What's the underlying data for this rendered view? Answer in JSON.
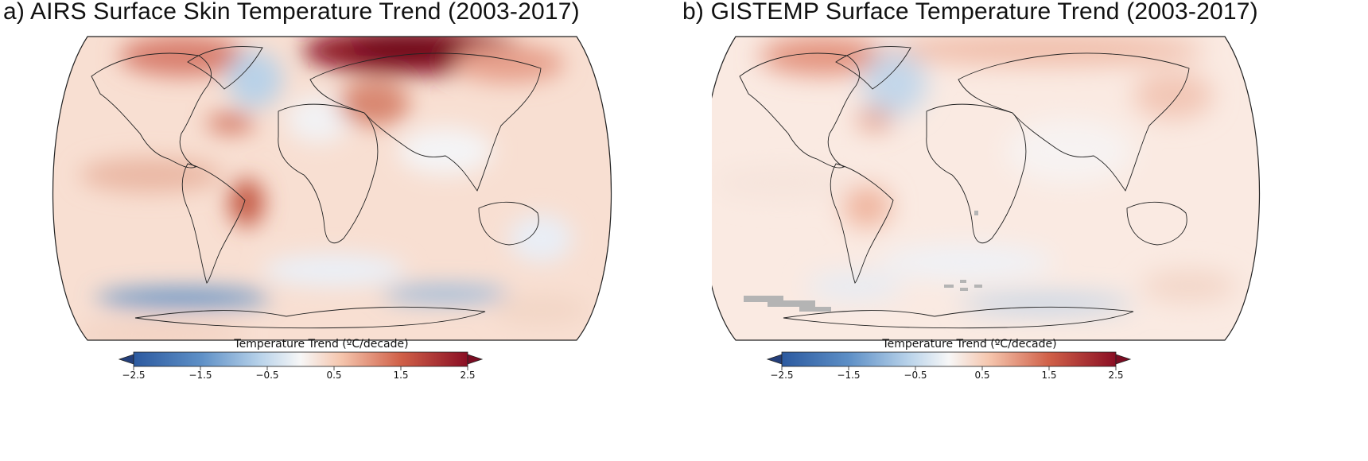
{
  "figure": {
    "colorbar": {
      "label": "Temperature Trend (ºC/decade)",
      "ticks": [
        "−2.5",
        "−1.5",
        "−0.5",
        "0.5",
        "1.5",
        "2.5"
      ],
      "min": -2.5,
      "max": 2.5,
      "extend": "both",
      "cmap": [
        "#2c5aa0",
        "#5d8fc6",
        "#a6c8e2",
        "#f7f7f7",
        "#f3b79a",
        "#d06048",
        "#8a0e24"
      ],
      "extend_colors": {
        "low": "#243f7a",
        "high": "#7a0c22"
      }
    },
    "panels": [
      {
        "id": "a",
        "title": "a) AIRS Surface Skin Temperature Trend (2003-2017)",
        "projection": "Robinson",
        "period": "2003-2017"
      },
      {
        "id": "b",
        "title": "b) GISTEMP Surface Temperature Trend (2003-2017)",
        "projection": "Robinson",
        "period": "2003-2017"
      }
    ]
  }
}
